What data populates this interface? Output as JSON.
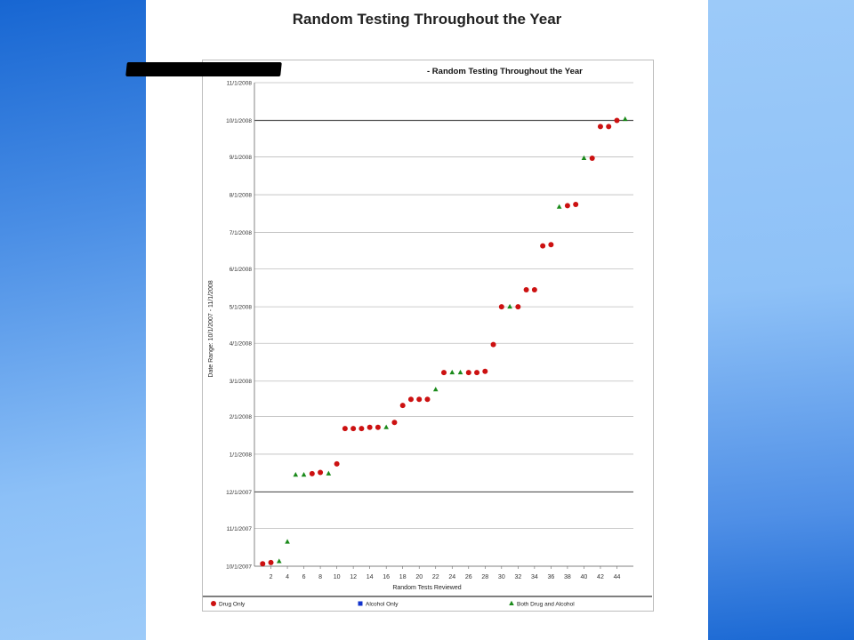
{
  "slide": {
    "title": "Random Testing Throughout the Year"
  },
  "colors": {
    "left_band": "#2a73d8",
    "right_band": "#2a73d8",
    "drug_only": "#cc1111",
    "alcohol_only": "#1133cc",
    "both": "#1a8a1a"
  },
  "chart_data": {
    "type": "scatter",
    "title": "- Random Testing Throughout the Year",
    "xlabel": "Random Tests Reviewed",
    "ylabel": "Date Range: 10/1/2007 - 11/1/2008",
    "xlim": [
      0,
      46
    ],
    "ylim": [
      "10/1/2007",
      "11/1/2008"
    ],
    "x_ticks": [
      2,
      4,
      6,
      8,
      10,
      12,
      14,
      16,
      18,
      20,
      22,
      24,
      26,
      28,
      30,
      32,
      34,
      36,
      38,
      40,
      42,
      44
    ],
    "y_ticks": [
      "10/1/2007",
      "11/1/2007",
      "12/1/2007",
      "1/1/2008",
      "2/1/2008",
      "3/1/2008",
      "4/1/2008",
      "5/1/2008",
      "6/1/2008",
      "7/1/2008",
      "8/1/2008",
      "9/1/2008",
      "10/1/2008",
      "11/1/2008"
    ],
    "grid": "horizontal lines at every month; bold lines at 12/1/2007 and 10/1/2008",
    "legend_position": "bottom",
    "series": [
      {
        "name": "Drug Only",
        "marker": "circle",
        "points": [
          [
            1,
            "10/3/2007"
          ],
          [
            2,
            "10/4/2007"
          ],
          [
            7,
            "12/16/2007"
          ],
          [
            8,
            "12/17/2007"
          ],
          [
            10,
            "12/24/2007"
          ],
          [
            11,
            "1/22/2008"
          ],
          [
            12,
            "1/22/2008"
          ],
          [
            13,
            "1/22/2008"
          ],
          [
            14,
            "1/23/2008"
          ],
          [
            15,
            "1/23/2008"
          ],
          [
            17,
            "1/27/2008"
          ],
          [
            18,
            "2/10/2008"
          ],
          [
            19,
            "2/15/2008"
          ],
          [
            20,
            "2/15/2008"
          ],
          [
            21,
            "2/15/2008"
          ],
          [
            23,
            "3/8/2008"
          ],
          [
            26,
            "3/8/2008"
          ],
          [
            27,
            "3/8/2008"
          ],
          [
            28,
            "3/9/2008"
          ],
          [
            29,
            "3/31/2008"
          ],
          [
            30,
            "5/1/2008"
          ],
          [
            32,
            "5/1/2008"
          ],
          [
            33,
            "5/15/2008"
          ],
          [
            34,
            "5/15/2008"
          ],
          [
            35,
            "6/20/2008"
          ],
          [
            36,
            "6/21/2008"
          ],
          [
            38,
            "7/23/2008"
          ],
          [
            39,
            "7/24/2008"
          ],
          [
            41,
            "8/31/2008"
          ],
          [
            42,
            "9/26/2008"
          ],
          [
            43,
            "9/26/2008"
          ],
          [
            44,
            "10/1/2008"
          ]
        ]
      },
      {
        "name": "Alcohol Only",
        "marker": "square",
        "points": []
      },
      {
        "name": "Both Drug and Alcohol",
        "marker": "triangle",
        "points": [
          [
            3,
            "10/5/2007"
          ],
          [
            4,
            "10/21/2007"
          ],
          [
            5,
            "12/15/2007"
          ],
          [
            6,
            "12/15/2007"
          ],
          [
            9,
            "12/16/2007"
          ],
          [
            16,
            "1/23/2008"
          ],
          [
            22,
            "2/23/2008"
          ],
          [
            24,
            "3/8/2008"
          ],
          [
            25,
            "3/8/2008"
          ],
          [
            31,
            "5/1/2008"
          ],
          [
            37,
            "7/22/2008"
          ],
          [
            40,
            "8/31/2008"
          ],
          [
            45,
            "10/2/2008"
          ]
        ]
      }
    ]
  }
}
